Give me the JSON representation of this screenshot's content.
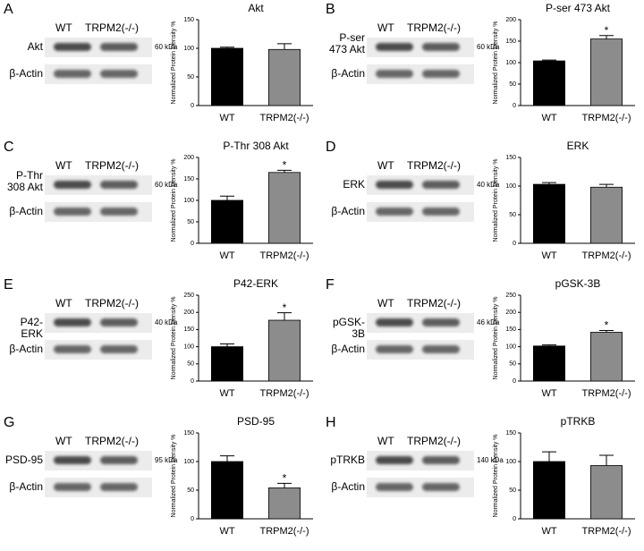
{
  "chart_data": [
    {
      "type": "bar",
      "title": "Akt",
      "y_label": "Normalized Protein Density %",
      "categories": [
        "WT",
        "TRPM2(-/-)"
      ],
      "values": [
        100,
        98
      ],
      "errors": [
        2,
        10
      ],
      "colors": [
        "#000000",
        "#8c8c8c"
      ],
      "annotations": [
        null,
        null
      ],
      "ylim": [
        0,
        150
      ],
      "yticks": [
        0,
        50,
        100,
        150
      ]
    },
    {
      "type": "bar",
      "title": "P-ser 473 Akt",
      "y_label": "Normalized Protein Density %",
      "categories": [
        "WT",
        "TRPM2(-/-)"
      ],
      "values": [
        104,
        155
      ],
      "errors": [
        2,
        8
      ],
      "colors": [
        "#000000",
        "#8c8c8c"
      ],
      "annotations": [
        null,
        "*"
      ],
      "ylim": [
        0,
        200
      ],
      "yticks": [
        0,
        50,
        100,
        150,
        200
      ]
    },
    {
      "type": "bar",
      "title": "P-Thr 308 Akt",
      "y_label": "Normalized Protein Density %",
      "categories": [
        "WT",
        "TRPM2(-/-)"
      ],
      "values": [
        100,
        165
      ],
      "errors": [
        10,
        5
      ],
      "colors": [
        "#000000",
        "#8c8c8c"
      ],
      "annotations": [
        null,
        "*"
      ],
      "ylim": [
        0,
        200
      ],
      "yticks": [
        0,
        50,
        100,
        150,
        200
      ]
    },
    {
      "type": "bar",
      "title": "ERK",
      "y_label": "Normalized Protein Density %",
      "categories": [
        "WT",
        "TRPM2(-/-)"
      ],
      "values": [
        103,
        98
      ],
      "errors": [
        3,
        5
      ],
      "colors": [
        "#000000",
        "#8c8c8c"
      ],
      "annotations": [
        null,
        null
      ],
      "ylim": [
        0,
        150
      ],
      "yticks": [
        0,
        50,
        100,
        150
      ]
    },
    {
      "type": "bar",
      "title": "P42-ERK",
      "y_label": "Normalized Protein Density %",
      "categories": [
        "WT",
        "TRPM2(-/-)"
      ],
      "values": [
        100,
        177
      ],
      "errors": [
        8,
        22
      ],
      "colors": [
        "#000000",
        "#8c8c8c"
      ],
      "annotations": [
        null,
        "*"
      ],
      "ylim": [
        0,
        250
      ],
      "yticks": [
        0,
        50,
        100,
        150,
        200,
        250
      ]
    },
    {
      "type": "bar",
      "title": "pGSK-3B",
      "y_label": "Normalized Protein Density %",
      "categories": [
        "WT",
        "TRPM2(-/-)"
      ],
      "values": [
        102,
        142
      ],
      "errors": [
        3,
        5
      ],
      "colors": [
        "#000000",
        "#8c8c8c"
      ],
      "annotations": [
        null,
        "*"
      ],
      "ylim": [
        0,
        250
      ],
      "yticks": [
        0,
        50,
        100,
        150,
        200,
        250
      ]
    },
    {
      "type": "bar",
      "title": "PSD-95",
      "y_label": "Normalized Protein Density %",
      "categories": [
        "WT",
        "TRPM2(-/-)"
      ],
      "values": [
        100,
        54
      ],
      "errors": [
        10,
        8
      ],
      "colors": [
        "#000000",
        "#8c8c8c"
      ],
      "annotations": [
        null,
        "*"
      ],
      "ylim": [
        0,
        150
      ],
      "yticks": [
        0,
        50,
        100,
        150
      ]
    },
    {
      "type": "bar",
      "title": "pTRKB",
      "y_label": "Normalized Protein Density %",
      "categories": [
        "WT",
        "TRPM2(-/-)"
      ],
      "values": [
        100,
        93
      ],
      "errors": [
        17,
        18
      ],
      "colors": [
        "#000000",
        "#8c8c8c"
      ],
      "annotations": [
        null,
        null
      ],
      "ylim": [
        0,
        150
      ],
      "yticks": [
        0,
        50,
        100,
        150
      ]
    }
  ],
  "blots": [
    {
      "letter": "A",
      "columns": [
        "WT",
        "TRPM2(-/-)"
      ],
      "rows": [
        {
          "label": "Akt",
          "size": "60 kDa"
        },
        {
          "label": "β-Actin"
        }
      ]
    },
    {
      "letter": "B",
      "columns": [
        "WT",
        "TRPM2(-/-)"
      ],
      "rows": [
        {
          "label": "P-ser 473 Akt",
          "size": "60 kDa"
        },
        {
          "label": "β-Actin"
        }
      ]
    },
    {
      "letter": "C",
      "columns": [
        "WT",
        "TRPM2(-/-)"
      ],
      "rows": [
        {
          "label": "P-Thr 308 Akt",
          "size": "60 kDa"
        },
        {
          "label": "β-Actin"
        }
      ]
    },
    {
      "letter": "D",
      "columns": [
        "WT",
        "TRPM2(-/-)"
      ],
      "rows": [
        {
          "label": "ERK",
          "size": "40 kDa"
        },
        {
          "label": "β-Actin"
        }
      ]
    },
    {
      "letter": "E",
      "columns": [
        "WT",
        "TRPM2(-/-)"
      ],
      "rows": [
        {
          "label": "P42-ERK",
          "size": "40 kDa"
        },
        {
          "label": "β-Actin"
        }
      ]
    },
    {
      "letter": "F",
      "columns": [
        "WT",
        "TRPM2(-/-)"
      ],
      "rows": [
        {
          "label": "pGSK-3B",
          "size": "46 kDa"
        },
        {
          "label": "β-Actin"
        }
      ]
    },
    {
      "letter": "G",
      "columns": [
        "WT",
        "TRPM2(-/-)"
      ],
      "rows": [
        {
          "label": "PSD-95",
          "size": "95 kDa"
        },
        {
          "label": "β-Actin"
        }
      ]
    },
    {
      "letter": "H",
      "columns": [
        "WT",
        "TRPM2(-/-)"
      ],
      "rows": [
        {
          "label": "pTRKB",
          "size": "140 kDa"
        },
        {
          "label": "β-Actin"
        }
      ]
    }
  ]
}
